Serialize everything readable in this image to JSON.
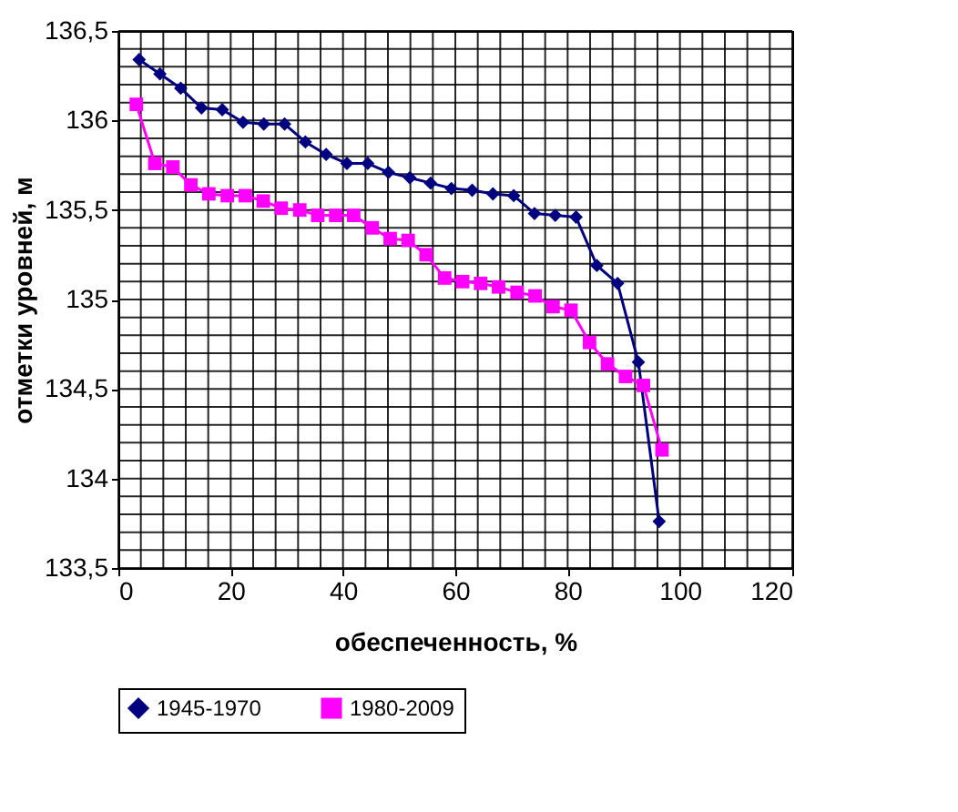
{
  "chart_data": {
    "type": "line",
    "xlabel": "обеспеченность, %",
    "ylabel": "отметки уровней, м",
    "xlim": [
      0,
      120
    ],
    "ylim": [
      133.5,
      136.5
    ],
    "grid": true,
    "legend": "bottom",
    "line_style": "solid",
    "xticks": [
      0,
      {
        "value": 4,
        "label": null
      },
      {
        "value": 8,
        "label": null
      },
      {
        "value": 12,
        "label": null
      },
      {
        "value": 16,
        "label": null
      },
      20,
      {
        "value": 24,
        "label": null
      },
      {
        "value": 28,
        "label": null
      },
      {
        "value": 32,
        "label": null
      },
      {
        "value": 36,
        "label": null
      },
      40,
      {
        "value": 44,
        "label": null
      },
      {
        "value": 48,
        "label": null
      },
      {
        "value": 52,
        "label": null
      },
      {
        "value": 56,
        "label": null
      },
      60,
      {
        "value": 64,
        "label": null
      },
      {
        "value": 68,
        "label": null
      },
      {
        "value": 72,
        "label": null
      },
      {
        "value": 76,
        "label": null
      },
      80,
      {
        "value": 84,
        "label": null
      },
      {
        "value": 88,
        "label": null
      },
      {
        "value": 92,
        "label": null
      },
      {
        "value": 96,
        "label": null
      },
      100,
      {
        "value": 104,
        "label": null
      },
      {
        "value": 108,
        "label": null
      },
      {
        "value": 112,
        "label": null
      },
      {
        "value": 116,
        "label": null
      },
      120
    ],
    "yticks": [
      {
        "value": 133.5,
        "label": "133,5"
      },
      {
        "value": 133.6,
        "label": null
      },
      {
        "value": 133.7,
        "label": null
      },
      {
        "value": 133.8,
        "label": null
      },
      {
        "value": 133.9,
        "label": null
      },
      134,
      {
        "value": 134.1,
        "label": null
      },
      {
        "value": 134.2,
        "label": null
      },
      {
        "value": 134.3,
        "label": null
      },
      {
        "value": 134.4,
        "label": null
      },
      {
        "value": 134.5,
        "label": "134,5"
      },
      {
        "value": 134.6,
        "label": null
      },
      {
        "value": 134.7,
        "label": null
      },
      {
        "value": 134.8,
        "label": null
      },
      {
        "value": 134.9,
        "label": null
      },
      135,
      {
        "value": 135.1,
        "label": null
      },
      {
        "value": 135.2,
        "label": null
      },
      {
        "value": 135.3,
        "label": null
      },
      {
        "value": 135.4,
        "label": null
      },
      {
        "value": 135.5,
        "label": "135,5"
      },
      {
        "value": 135.6,
        "label": null
      },
      {
        "value": 135.7,
        "label": null
      },
      {
        "value": 135.8,
        "label": null
      },
      {
        "value": 135.9,
        "label": null
      },
      136,
      {
        "value": 136.1,
        "label": null
      },
      {
        "value": 136.2,
        "label": null
      },
      {
        "value": 136.3,
        "label": null
      },
      {
        "value": 136.4,
        "label": null
      },
      {
        "value": 136.5,
        "label": "136,5"
      }
    ],
    "series": [
      {
        "name": "1945-1970",
        "color": "#000080",
        "marker": "diamond",
        "x": [
          3.7,
          7.4,
          11.1,
          14.8,
          18.5,
          22.2,
          25.9,
          29.6,
          33.3,
          37,
          40.7,
          44.4,
          48.1,
          51.9,
          55.6,
          59.3,
          63,
          66.7,
          70.4,
          74.1,
          77.8,
          81.5,
          85.2,
          88.9,
          92.6,
          96.3
        ],
        "values": [
          136.34,
          136.26,
          136.18,
          136.07,
          136.06,
          135.99,
          135.98,
          135.98,
          135.88,
          135.81,
          135.76,
          135.76,
          135.71,
          135.68,
          135.65,
          135.62,
          135.61,
          135.59,
          135.58,
          135.48,
          135.47,
          135.46,
          135.19,
          135.09,
          134.65,
          133.76
        ]
      },
      {
        "name": "1980-2009",
        "color": "#ff00ff",
        "marker": "square",
        "x": [
          3.2,
          6.5,
          9.7,
          12.9,
          16.1,
          19.4,
          22.6,
          25.8,
          29,
          32.3,
          35.5,
          38.7,
          41.9,
          45.2,
          48.4,
          51.6,
          54.8,
          58.1,
          61.3,
          64.5,
          67.7,
          71,
          74.2,
          77.4,
          80.6,
          83.9,
          87.1,
          90.3,
          93.5,
          96.8
        ],
        "values": [
          136.09,
          135.76,
          135.74,
          135.64,
          135.59,
          135.58,
          135.58,
          135.55,
          135.51,
          135.5,
          135.47,
          135.47,
          135.47,
          135.4,
          135.34,
          135.33,
          135.25,
          135.12,
          135.1,
          135.09,
          135.07,
          135.04,
          135.02,
          134.96,
          134.94,
          134.76,
          134.64,
          134.57,
          134.52,
          134.16
        ]
      }
    ]
  }
}
